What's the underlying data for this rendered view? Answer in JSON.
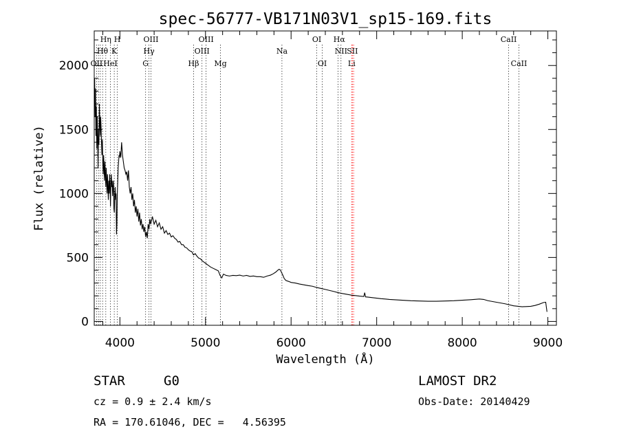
{
  "chart_data": {
    "type": "line",
    "title": "spec-56777-VB171N03V1_sp15-169.fits",
    "xlabel": "Wavelength (Å)",
    "ylabel": "Flux (relative)",
    "xlim": [
      3700,
      9100
    ],
    "ylim": [
      -30,
      2270
    ],
    "xticks": [
      4000,
      5000,
      6000,
      7000,
      8000,
      9000
    ],
    "yticks": [
      0,
      500,
      1000,
      1500,
      2000
    ],
    "grid": false,
    "series": [
      {
        "values_xy": [
          [
            3700,
            1750
          ],
          [
            3705,
            1900
          ],
          [
            3710,
            1600
          ],
          [
            3715,
            1820
          ],
          [
            3720,
            1450
          ],
          [
            3725,
            1680
          ],
          [
            3730,
            1350
          ],
          [
            3735,
            1600
          ],
          [
            3740,
            1420
          ],
          [
            3745,
            1200
          ],
          [
            3750,
            1500
          ],
          [
            3755,
            1380
          ],
          [
            3760,
            1700
          ],
          [
            3765,
            1550
          ],
          [
            3770,
            1450
          ],
          [
            3775,
            1600
          ],
          [
            3780,
            1520
          ],
          [
            3785,
            1400
          ],
          [
            3790,
            1300
          ],
          [
            3795,
            1420
          ],
          [
            3800,
            1250
          ],
          [
            3805,
            1150
          ],
          [
            3810,
            1300
          ],
          [
            3815,
            1200
          ],
          [
            3820,
            1100
          ],
          [
            3825,
            1250
          ],
          [
            3830,
            1150
          ],
          [
            3835,
            1050
          ],
          [
            3840,
            1200
          ],
          [
            3845,
            1100
          ],
          [
            3850,
            1000
          ],
          [
            3855,
            1150
          ],
          [
            3860,
            1050
          ],
          [
            3865,
            950
          ],
          [
            3870,
            1100
          ],
          [
            3875,
            1000
          ],
          [
            3880,
            1150
          ],
          [
            3885,
            1050
          ],
          [
            3890,
            900
          ],
          [
            3895,
            1100
          ],
          [
            3900,
            1150
          ],
          [
            3905,
            1050
          ],
          [
            3910,
            1100
          ],
          [
            3915,
            980
          ],
          [
            3920,
            1050
          ],
          [
            3925,
            1100
          ],
          [
            3930,
            880
          ],
          [
            3935,
            850
          ],
          [
            3940,
            1000
          ],
          [
            3945,
            1050
          ],
          [
            3950,
            950
          ],
          [
            3955,
            1000
          ],
          [
            3960,
            680
          ],
          [
            3965,
            760
          ],
          [
            3970,
            1000
          ],
          [
            3975,
            1100
          ],
          [
            3980,
            1200
          ],
          [
            3985,
            1250
          ],
          [
            3990,
            1300
          ],
          [
            3995,
            1280
          ],
          [
            4000,
            1330
          ],
          [
            4010,
            1280
          ],
          [
            4020,
            1400
          ],
          [
            4030,
            1300
          ],
          [
            4040,
            1250
          ],
          [
            4050,
            1200
          ],
          [
            4060,
            1180
          ],
          [
            4070,
            1150
          ],
          [
            4080,
            1170
          ],
          [
            4090,
            1100
          ],
          [
            4100,
            1180
          ],
          [
            4110,
            1050
          ],
          [
            4120,
            1000
          ],
          [
            4130,
            1050
          ],
          [
            4140,
            950
          ],
          [
            4150,
            1000
          ],
          [
            4160,
            900
          ],
          [
            4170,
            950
          ],
          [
            4180,
            850
          ],
          [
            4190,
            900
          ],
          [
            4200,
            820
          ],
          [
            4210,
            880
          ],
          [
            4220,
            780
          ],
          [
            4230,
            850
          ],
          [
            4240,
            750
          ],
          [
            4250,
            800
          ],
          [
            4260,
            720
          ],
          [
            4270,
            760
          ],
          [
            4280,
            700
          ],
          [
            4290,
            740
          ],
          [
            4300,
            660
          ],
          [
            4310,
            700
          ],
          [
            4320,
            650
          ],
          [
            4330,
            760
          ],
          [
            4340,
            720
          ],
          [
            4350,
            800
          ],
          [
            4360,
            760
          ],
          [
            4380,
            820
          ],
          [
            4400,
            760
          ],
          [
            4420,
            790
          ],
          [
            4440,
            740
          ],
          [
            4460,
            770
          ],
          [
            4480,
            720
          ],
          [
            4500,
            740
          ],
          [
            4520,
            690
          ],
          [
            4540,
            710
          ],
          [
            4560,
            680
          ],
          [
            4580,
            690
          ],
          [
            4600,
            660
          ],
          [
            4620,
            670
          ],
          [
            4640,
            650
          ],
          [
            4660,
            640
          ],
          [
            4680,
            620
          ],
          [
            4700,
            625
          ],
          [
            4720,
            600
          ],
          [
            4740,
            600
          ],
          [
            4760,
            580
          ],
          [
            4780,
            575
          ],
          [
            4800,
            560
          ],
          [
            4820,
            550
          ],
          [
            4840,
            545
          ],
          [
            4860,
            520
          ],
          [
            4880,
            530
          ],
          [
            4900,
            510
          ],
          [
            4920,
            495
          ],
          [
            4940,
            490
          ],
          [
            4960,
            475
          ],
          [
            4980,
            465
          ],
          [
            5000,
            455
          ],
          [
            5030,
            440
          ],
          [
            5060,
            425
          ],
          [
            5090,
            415
          ],
          [
            5120,
            405
          ],
          [
            5150,
            395
          ],
          [
            5170,
            360
          ],
          [
            5190,
            340
          ],
          [
            5210,
            370
          ],
          [
            5240,
            360
          ],
          [
            5280,
            355
          ],
          [
            5320,
            360
          ],
          [
            5360,
            358
          ],
          [
            5400,
            362
          ],
          [
            5440,
            355
          ],
          [
            5480,
            360
          ],
          [
            5520,
            352
          ],
          [
            5560,
            355
          ],
          [
            5600,
            350
          ],
          [
            5640,
            350
          ],
          [
            5680,
            345
          ],
          [
            5720,
            355
          ],
          [
            5760,
            362
          ],
          [
            5790,
            372
          ],
          [
            5820,
            385
          ],
          [
            5845,
            400
          ],
          [
            5860,
            408
          ],
          [
            5875,
            402
          ],
          [
            5890,
            380
          ],
          [
            5905,
            360
          ],
          [
            5920,
            335
          ],
          [
            5940,
            320
          ],
          [
            5970,
            313
          ],
          [
            6000,
            305
          ],
          [
            6050,
            300
          ],
          [
            6100,
            292
          ],
          [
            6150,
            286
          ],
          [
            6200,
            280
          ],
          [
            6250,
            275
          ],
          [
            6300,
            265
          ],
          [
            6350,
            258
          ],
          [
            6400,
            250
          ],
          [
            6450,
            242
          ],
          [
            6500,
            234
          ],
          [
            6550,
            225
          ],
          [
            6600,
            218
          ],
          [
            6650,
            212
          ],
          [
            6700,
            206
          ],
          [
            6750,
            202
          ],
          [
            6800,
            198
          ],
          [
            6850,
            195
          ],
          [
            6860,
            225
          ],
          [
            6870,
            192
          ],
          [
            6900,
            190
          ],
          [
            6950,
            186
          ],
          [
            7000,
            182
          ],
          [
            7050,
            178
          ],
          [
            7100,
            175
          ],
          [
            7150,
            172
          ],
          [
            7200,
            170
          ],
          [
            7300,
            166
          ],
          [
            7400,
            162
          ],
          [
            7500,
            160
          ],
          [
            7600,
            158
          ],
          [
            7700,
            158
          ],
          [
            7800,
            160
          ],
          [
            7900,
            162
          ],
          [
            8000,
            166
          ],
          [
            8100,
            170
          ],
          [
            8200,
            175
          ],
          [
            8250,
            172
          ],
          [
            8300,
            162
          ],
          [
            8400,
            150
          ],
          [
            8500,
            138
          ],
          [
            8600,
            122
          ],
          [
            8700,
            115
          ],
          [
            8800,
            118
          ],
          [
            8850,
            125
          ],
          [
            8900,
            135
          ],
          [
            8950,
            148
          ],
          [
            8975,
            150
          ],
          [
            8990,
            75
          ]
        ]
      }
    ],
    "annotations": {
      "rows": [
        {
          "level": 0,
          "items": [
            {
              "text": "Hη",
              "wl": 3835
            },
            {
              "text": "H",
              "wl": 3970
            },
            {
              "text": "OIII",
              "wl": 4363
            },
            {
              "text": "OIII",
              "wl": 5007
            },
            {
              "text": "OI",
              "wl": 6300
            },
            {
              "text": "Hα",
              "wl": 6563
            },
            {
              "text": "CaII",
              "wl": 8542
            }
          ]
        },
        {
          "level": 1,
          "items": [
            {
              "text": "Hθ",
              "wl": 3797
            },
            {
              "text": "K",
              "wl": 3934
            },
            {
              "text": "Hγ",
              "wl": 4340
            },
            {
              "text": "OIII",
              "wl": 4959
            },
            {
              "text": "Na",
              "wl": 5893
            },
            {
              "text": "NII",
              "wl": 6583
            },
            {
              "text": "SII",
              "wl": 6716
            }
          ]
        },
        {
          "level": 2,
          "items": [
            {
              "text": "OII",
              "wl": 3727
            },
            {
              "text": "HeI",
              "wl": 3889
            },
            {
              "text": "G",
              "wl": 4300
            },
            {
              "text": "Hβ",
              "wl": 4861
            },
            {
              "text": "Mg",
              "wl": 5175
            },
            {
              "text": "OI",
              "wl": 6364
            },
            {
              "text": "Li",
              "wl": 6708
            },
            {
              "text": "CaII",
              "wl": 8662
            }
          ]
        }
      ],
      "line_color": "#000000",
      "highlight_color": "#ff0000",
      "dotted_lines": [
        3727,
        3750,
        3771,
        3798,
        3835,
        3889,
        3934,
        3970,
        4300,
        4340,
        4363,
        4861,
        4959,
        5007,
        5175,
        5893,
        6300,
        6364,
        6548,
        6583,
        8542,
        8662
      ],
      "red_lines": [
        6708,
        6716,
        6731
      ]
    }
  },
  "info": {
    "class_label": "STAR",
    "subclass_label": "G0",
    "survey_label": "LAMOST DR2",
    "cz_text": "cz = 0.9 ± 2.4 km/s",
    "obsdate_text": "Obs-Date: 20140429",
    "radec_text": "RA = 170.61046, DEC =   4.56395"
  }
}
